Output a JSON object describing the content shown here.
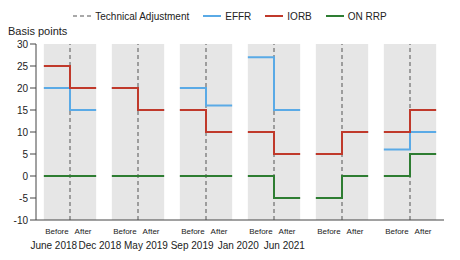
{
  "chart_data": {
    "type": "line",
    "y_label": "Basis points",
    "reference_line_label": "Technical Adjustment",
    "reference_line_color": "#555555",
    "groups": [
      "June 2018",
      "Dec 2018",
      "May 2019",
      "Sep 2019",
      "Jan 2020",
      "Jun 2021"
    ],
    "categories": [
      "Before",
      "After",
      "Before",
      "After",
      "Before",
      "After",
      "Before",
      "After",
      "Before",
      "After",
      "Before",
      "After"
    ],
    "series": [
      {
        "name": "EFFR",
        "color": "#5aaae6",
        "values": [
          20,
          15,
          20,
          15,
          20,
          16,
          27,
          15,
          5,
          10,
          6,
          10
        ]
      },
      {
        "name": "IORB",
        "color": "#c0392b",
        "values": [
          25,
          20,
          20,
          15,
          15,
          10,
          10,
          5,
          5,
          10,
          10,
          15
        ]
      },
      {
        "name": "ON RRP",
        "color": "#2e7d32",
        "values": [
          0,
          0,
          0,
          0,
          0,
          0,
          0,
          -5,
          -5,
          0,
          0,
          5
        ]
      }
    ],
    "ylim": [
      -10,
      30
    ],
    "yticks": [
      -10,
      -5,
      0,
      5,
      10,
      15,
      20,
      25,
      30
    ],
    "legend": "top",
    "line_style": "step"
  }
}
